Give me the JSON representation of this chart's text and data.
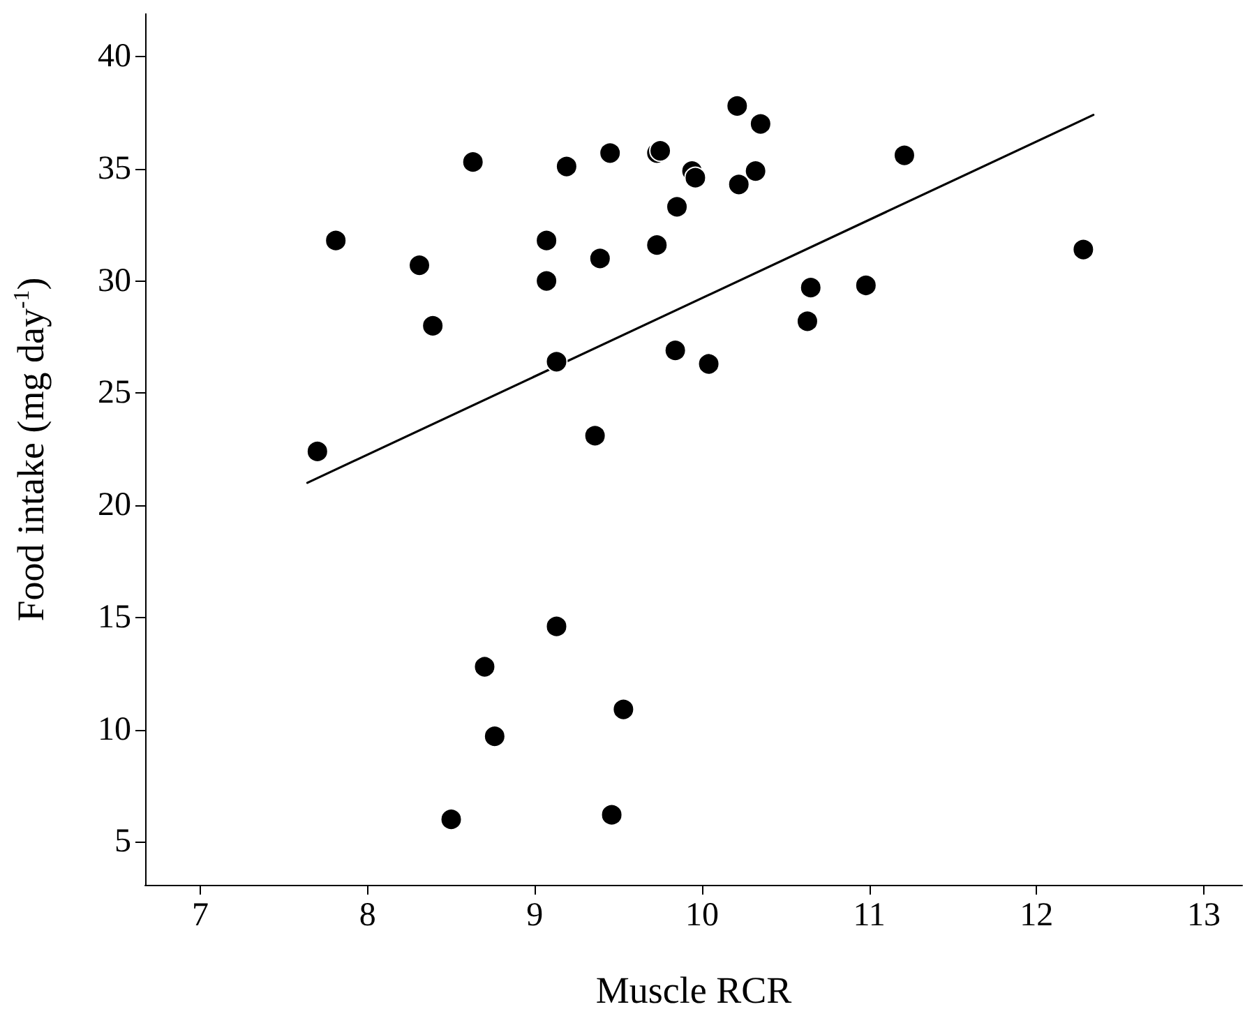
{
  "chart_data": {
    "type": "scatter",
    "xlabel": "Muscle RCR",
    "ylabel": "Food intake (mg day$^{-1}$)",
    "xlim": [
      6.67,
      13.23
    ],
    "ylim": [
      3.08,
      41.9
    ],
    "xticks": [
      7,
      8,
      9,
      10,
      11,
      12,
      13
    ],
    "yticks": [
      5,
      10,
      15,
      20,
      25,
      30,
      35,
      40
    ],
    "grid": false,
    "marker": "circle",
    "series": [
      {
        "color": "#000000",
        "x": [
          7.7,
          7.81,
          8.31,
          8.39,
          8.63,
          9.07,
          9.07,
          9.13,
          9.19,
          9.39,
          9.36,
          9.45,
          9.73,
          9.75,
          9.73,
          9.85,
          9.84,
          9.94,
          9.96,
          10.04,
          10.21,
          10.22,
          10.32,
          10.35,
          10.63,
          10.65,
          10.98,
          11.21,
          12.28,
          9.13,
          8.7,
          9.53,
          8.76,
          8.5,
          9.46
        ],
        "values": [
          22.4,
          31.8,
          30.7,
          28.0,
          35.3,
          31.8,
          30.0,
          26.4,
          35.1,
          31.0,
          23.1,
          35.7,
          35.7,
          35.8,
          31.6,
          33.3,
          26.9,
          34.9,
          34.6,
          26.3,
          37.8,
          34.3,
          34.9,
          37.0,
          28.2,
          29.7,
          29.8,
          35.6,
          31.4,
          14.6,
          12.8,
          10.9,
          9.7,
          6.0,
          6.2
        ]
      },
      {
        "type": "line",
        "color": "#000000",
        "marker": "none",
        "line_style": "solid",
        "x": [
          7.64,
          12.34
        ],
        "values": [
          21.0,
          37.4
        ]
      }
    ]
  }
}
